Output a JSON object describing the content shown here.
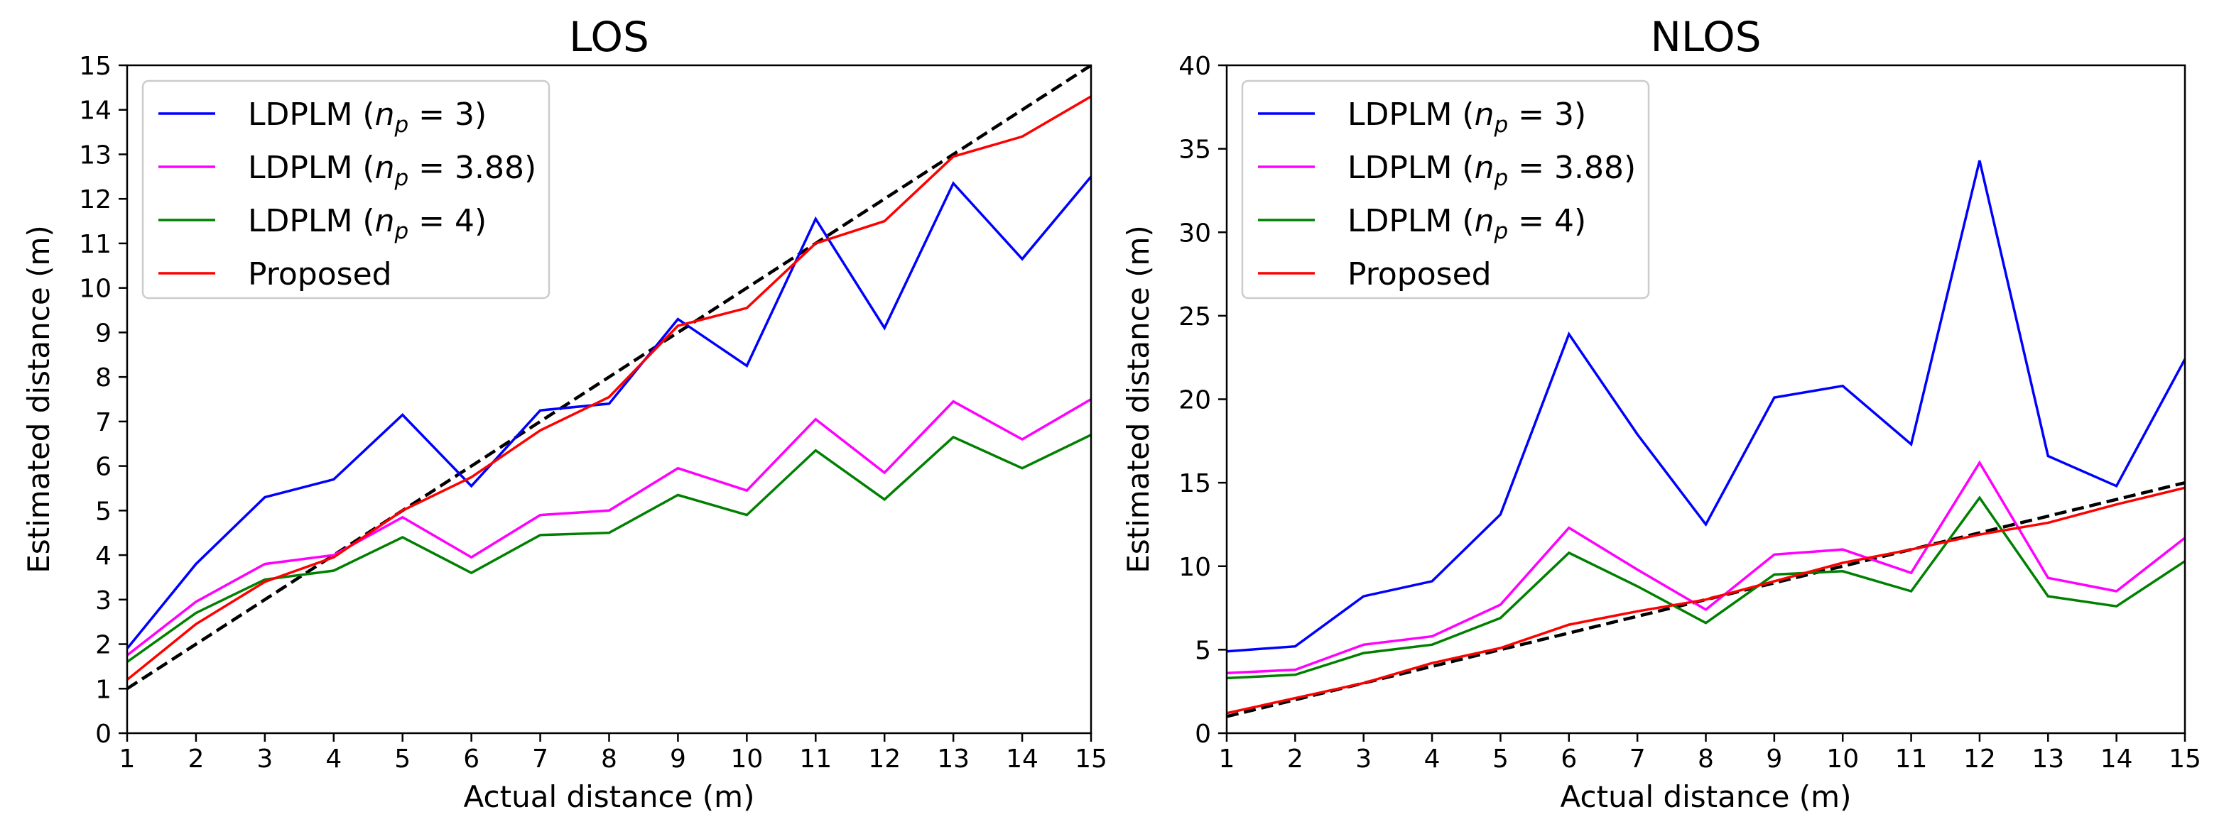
{
  "chart_data": [
    {
      "type": "line",
      "title": "LOS",
      "xlabel": "Actual distance (m)",
      "ylabel": "Estimated distance (m)",
      "xlim": [
        1,
        15
      ],
      "ylim": [
        0,
        15
      ],
      "x_ticks": [
        1,
        2,
        3,
        4,
        5,
        6,
        7,
        8,
        9,
        10,
        11,
        12,
        13,
        14,
        15
      ],
      "y_ticks": [
        0,
        1,
        2,
        3,
        4,
        5,
        6,
        7,
        8,
        9,
        10,
        11,
        12,
        13,
        14,
        15
      ],
      "grid": false,
      "legend_position": "top-left",
      "x": [
        1,
        2,
        3,
        4,
        5,
        6,
        7,
        8,
        9,
        10,
        11,
        12,
        13,
        14,
        15
      ],
      "reference_line": {
        "style": "dashed",
        "color": "#000000",
        "x": [
          1,
          15
        ],
        "y": [
          1,
          15
        ]
      },
      "series": [
        {
          "name_prefix": "LDPLM (",
          "name_var": "n",
          "name_sub": "p",
          "name_suffix": " = 3)",
          "color": "#0000ff",
          "values": [
            1.9,
            3.8,
            5.3,
            5.7,
            7.15,
            5.55,
            7.25,
            7.4,
            9.3,
            8.25,
            11.55,
            9.1,
            12.35,
            10.65,
            12.5
          ]
        },
        {
          "name_prefix": "LDPLM (",
          "name_var": "n",
          "name_sub": "p",
          "name_suffix": " = 3.88)",
          "color": "#ff00ff",
          "values": [
            1.75,
            2.95,
            3.8,
            4.0,
            4.85,
            3.95,
            4.9,
            5.0,
            5.95,
            5.45,
            7.05,
            5.85,
            7.45,
            6.6,
            7.5
          ]
        },
        {
          "name_prefix": "LDPLM (",
          "name_var": "n",
          "name_sub": "p",
          "name_suffix": " = 4)",
          "color": "#008000",
          "values": [
            1.6,
            2.7,
            3.45,
            3.65,
            4.4,
            3.6,
            4.45,
            4.5,
            5.35,
            4.9,
            6.35,
            5.25,
            6.65,
            5.95,
            6.7
          ]
        },
        {
          "name_prefix": "Proposed",
          "name_var": "",
          "name_sub": "",
          "name_suffix": "",
          "color": "#ff0000",
          "values": [
            1.2,
            2.45,
            3.4,
            3.95,
            5.0,
            5.75,
            6.8,
            7.55,
            9.15,
            9.55,
            11.0,
            11.5,
            12.95,
            13.4,
            14.3
          ]
        }
      ]
    },
    {
      "type": "line",
      "title": "NLOS",
      "xlabel": "Actual distance (m)",
      "ylabel": "Estimated distance (m)",
      "xlim": [
        1,
        15
      ],
      "ylim": [
        0,
        40
      ],
      "x_ticks": [
        1,
        2,
        3,
        4,
        5,
        6,
        7,
        8,
        9,
        10,
        11,
        12,
        13,
        14,
        15
      ],
      "y_ticks": [
        0,
        5,
        10,
        15,
        20,
        25,
        30,
        35,
        40
      ],
      "grid": false,
      "legend_position": "top-left",
      "x": [
        1,
        2,
        3,
        4,
        5,
        6,
        7,
        8,
        9,
        10,
        11,
        12,
        13,
        14,
        15
      ],
      "reference_line": {
        "style": "dashed",
        "color": "#000000",
        "x": [
          1,
          15
        ],
        "y": [
          1,
          15
        ]
      },
      "series": [
        {
          "name_prefix": "LDPLM (",
          "name_var": "n",
          "name_sub": "p",
          "name_suffix": " = 3)",
          "color": "#0000ff",
          "values": [
            4.9,
            5.2,
            8.2,
            9.1,
            13.1,
            23.9,
            17.9,
            12.5,
            20.1,
            20.8,
            17.3,
            34.3,
            16.6,
            14.8,
            22.4
          ]
        },
        {
          "name_prefix": "LDPLM (",
          "name_var": "n",
          "name_sub": "p",
          "name_suffix": " = 3.88)",
          "color": "#ff00ff",
          "values": [
            3.6,
            3.8,
            5.3,
            5.8,
            7.7,
            12.3,
            9.8,
            7.4,
            10.7,
            11.0,
            9.6,
            16.2,
            9.3,
            8.5,
            11.7
          ]
        },
        {
          "name_prefix": "LDPLM (",
          "name_var": "n",
          "name_sub": "p",
          "name_suffix": " = 4)",
          "color": "#008000",
          "values": [
            3.3,
            3.5,
            4.8,
            5.3,
            6.9,
            10.8,
            8.8,
            6.6,
            9.5,
            9.7,
            8.5,
            14.1,
            8.2,
            7.6,
            10.3
          ]
        },
        {
          "name_prefix": "Proposed",
          "name_var": "",
          "name_sub": "",
          "name_suffix": "",
          "color": "#ff0000",
          "values": [
            1.2,
            2.1,
            3.0,
            4.2,
            5.1,
            6.5,
            7.3,
            8.0,
            9.1,
            10.2,
            11.0,
            11.9,
            12.6,
            13.7,
            14.7
          ]
        }
      ]
    }
  ]
}
